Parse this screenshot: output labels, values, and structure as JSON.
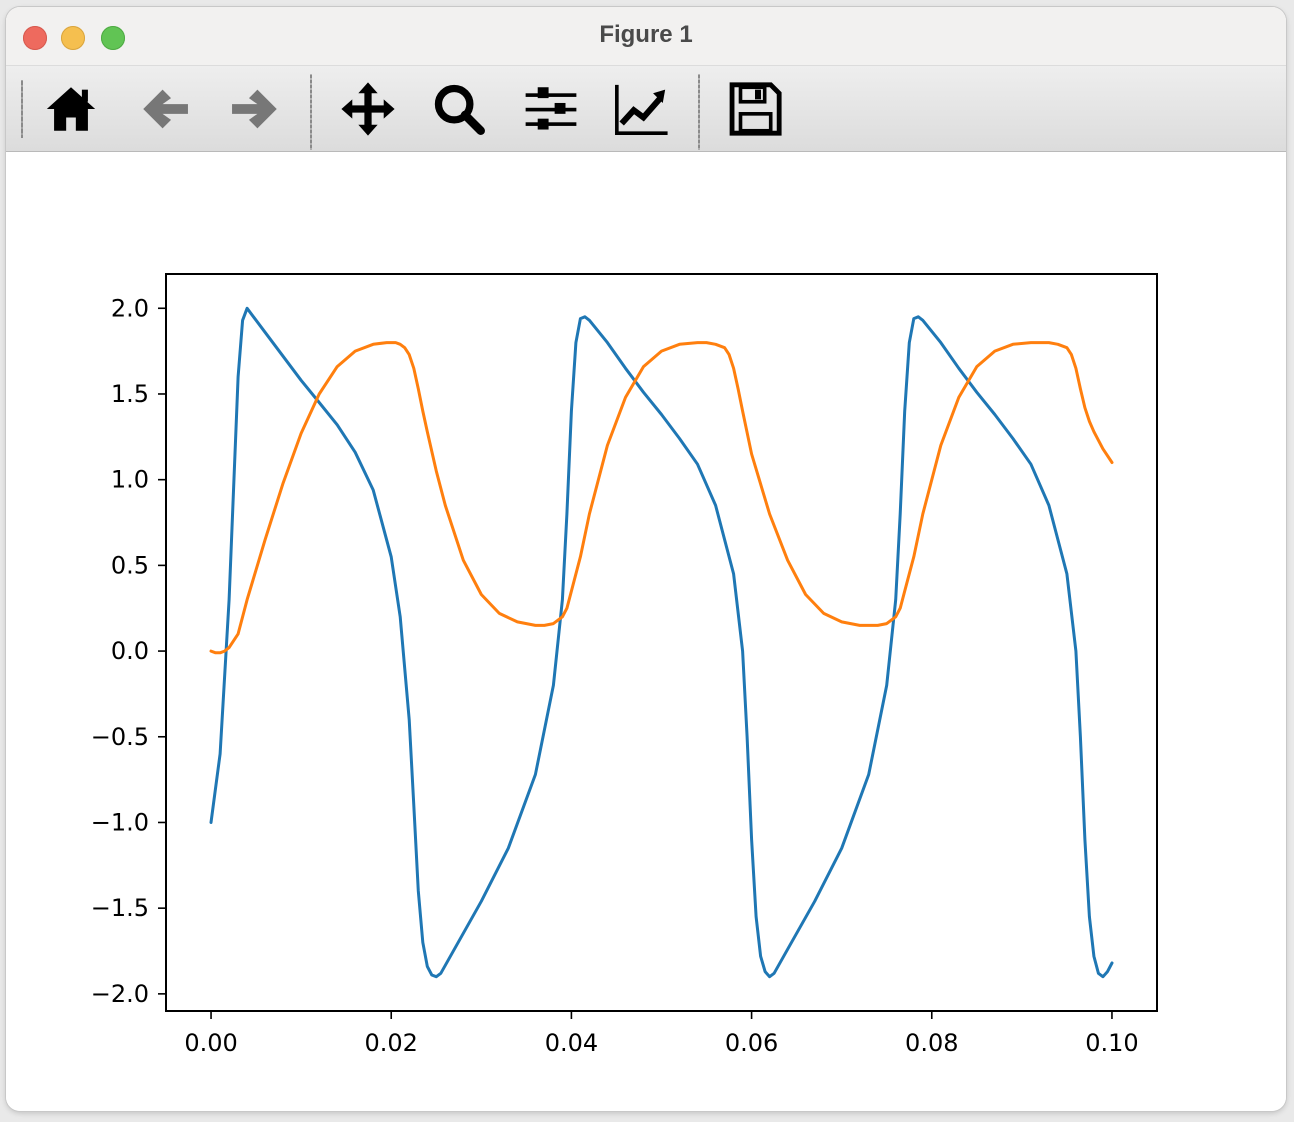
{
  "window": {
    "title": "Figure 1"
  },
  "toolbar": {
    "tools": [
      {
        "name": "home",
        "icon": "home-icon"
      },
      {
        "name": "back",
        "icon": "arrow-left-icon"
      },
      {
        "name": "forward",
        "icon": "arrow-right-icon"
      },
      {
        "name": "pan",
        "icon": "move-icon"
      },
      {
        "name": "zoom",
        "icon": "magnifier-icon"
      },
      {
        "name": "subplots",
        "icon": "sliders-icon"
      },
      {
        "name": "customize",
        "icon": "line-chart-icon"
      },
      {
        "name": "save",
        "icon": "floppy-disk-icon"
      }
    ]
  },
  "chart_data": {
    "type": "line",
    "title": "",
    "xlabel": "",
    "ylabel": "",
    "xlim": [
      -0.005,
      0.105
    ],
    "ylim": [
      -2.1,
      2.2
    ],
    "xticks": [
      0.0,
      0.02,
      0.04,
      0.06,
      0.08,
      0.1
    ],
    "xtick_labels": [
      "0.00",
      "0.02",
      "0.04",
      "0.06",
      "0.08",
      "0.10"
    ],
    "yticks": [
      -2.0,
      -1.5,
      -1.0,
      -0.5,
      0.0,
      0.5,
      1.0,
      1.5,
      2.0
    ],
    "ytick_labels": [
      "−2.0",
      "−1.5",
      "−1.0",
      "−0.5",
      "0.0",
      "0.5",
      "1.0",
      "1.5",
      "2.0"
    ],
    "grid": false,
    "legend": "none",
    "colors": [
      "#1f77b4",
      "#ff7f0e"
    ],
    "series": [
      {
        "x": [
          0.0,
          0.001,
          0.002,
          0.003,
          0.0035,
          0.004,
          0.006,
          0.008,
          0.01,
          0.012,
          0.014,
          0.016,
          0.018,
          0.02,
          0.021,
          0.022,
          0.0225,
          0.023,
          0.0235,
          0.024,
          0.0245,
          0.025,
          0.0255,
          0.027,
          0.03,
          0.033,
          0.036,
          0.038,
          0.039,
          0.0395,
          0.04,
          0.0405,
          0.041,
          0.0415,
          0.042,
          0.044,
          0.046,
          0.048,
          0.05,
          0.052,
          0.054,
          0.056,
          0.058,
          0.059,
          0.0595,
          0.06,
          0.0605,
          0.061,
          0.0615,
          0.062,
          0.0625,
          0.064,
          0.067,
          0.07,
          0.073,
          0.075,
          0.076,
          0.0765,
          0.077,
          0.0775,
          0.078,
          0.0785,
          0.079,
          0.081,
          0.083,
          0.085,
          0.087,
          0.089,
          0.091,
          0.093,
          0.095,
          0.096,
          0.0965,
          0.097,
          0.0975,
          0.098,
          0.0985,
          0.099,
          0.0995,
          0.1
        ],
        "values": [
          -1.0,
          -0.6,
          0.3,
          1.6,
          1.93,
          2.0,
          1.86,
          1.72,
          1.58,
          1.45,
          1.32,
          1.16,
          0.94,
          0.55,
          0.2,
          -0.4,
          -0.9,
          -1.4,
          -1.7,
          -1.84,
          -1.89,
          -1.9,
          -1.88,
          -1.74,
          -1.46,
          -1.15,
          -0.72,
          -0.2,
          0.3,
          0.8,
          1.4,
          1.8,
          1.94,
          1.95,
          1.93,
          1.8,
          1.65,
          1.51,
          1.38,
          1.24,
          1.09,
          0.85,
          0.45,
          0.0,
          -0.5,
          -1.1,
          -1.55,
          -1.78,
          -1.87,
          -1.9,
          -1.88,
          -1.74,
          -1.46,
          -1.15,
          -0.72,
          -0.2,
          0.3,
          0.8,
          1.4,
          1.8,
          1.94,
          1.95,
          1.93,
          1.8,
          1.65,
          1.51,
          1.38,
          1.24,
          1.09,
          0.85,
          0.45,
          0.0,
          -0.5,
          -1.1,
          -1.55,
          -1.78,
          -1.88,
          -1.9,
          -1.87,
          -1.82
        ]
      },
      {
        "x": [
          0.0,
          0.0005,
          0.001,
          0.0015,
          0.002,
          0.003,
          0.004,
          0.006,
          0.008,
          0.01,
          0.012,
          0.014,
          0.016,
          0.018,
          0.0195,
          0.0205,
          0.021,
          0.0215,
          0.022,
          0.0225,
          0.023,
          0.0235,
          0.024,
          0.025,
          0.026,
          0.028,
          0.03,
          0.032,
          0.034,
          0.036,
          0.037,
          0.038,
          0.039,
          0.0395,
          0.04,
          0.041,
          0.042,
          0.044,
          0.046,
          0.048,
          0.05,
          0.052,
          0.054,
          0.055,
          0.056,
          0.057,
          0.0575,
          0.058,
          0.0585,
          0.059,
          0.06,
          0.062,
          0.064,
          0.066,
          0.068,
          0.07,
          0.072,
          0.074,
          0.075,
          0.076,
          0.0765,
          0.077,
          0.078,
          0.079,
          0.081,
          0.083,
          0.085,
          0.087,
          0.089,
          0.091,
          0.093,
          0.094,
          0.095,
          0.0955,
          0.096,
          0.0965,
          0.097,
          0.0975,
          0.098,
          0.099,
          0.1
        ],
        "values": [
          0.0,
          -0.01,
          -0.01,
          0.0,
          0.02,
          0.1,
          0.3,
          0.65,
          0.98,
          1.27,
          1.5,
          1.66,
          1.75,
          1.79,
          1.8,
          1.8,
          1.79,
          1.77,
          1.73,
          1.65,
          1.53,
          1.4,
          1.28,
          1.05,
          0.85,
          0.53,
          0.33,
          0.22,
          0.17,
          0.15,
          0.15,
          0.16,
          0.2,
          0.25,
          0.35,
          0.55,
          0.8,
          1.2,
          1.48,
          1.66,
          1.75,
          1.79,
          1.8,
          1.8,
          1.79,
          1.77,
          1.73,
          1.65,
          1.53,
          1.4,
          1.15,
          0.8,
          0.53,
          0.33,
          0.22,
          0.17,
          0.15,
          0.15,
          0.16,
          0.2,
          0.25,
          0.35,
          0.55,
          0.8,
          1.2,
          1.48,
          1.66,
          1.75,
          1.79,
          1.8,
          1.8,
          1.79,
          1.77,
          1.73,
          1.65,
          1.53,
          1.42,
          1.34,
          1.28,
          1.18,
          1.1
        ]
      }
    ]
  }
}
